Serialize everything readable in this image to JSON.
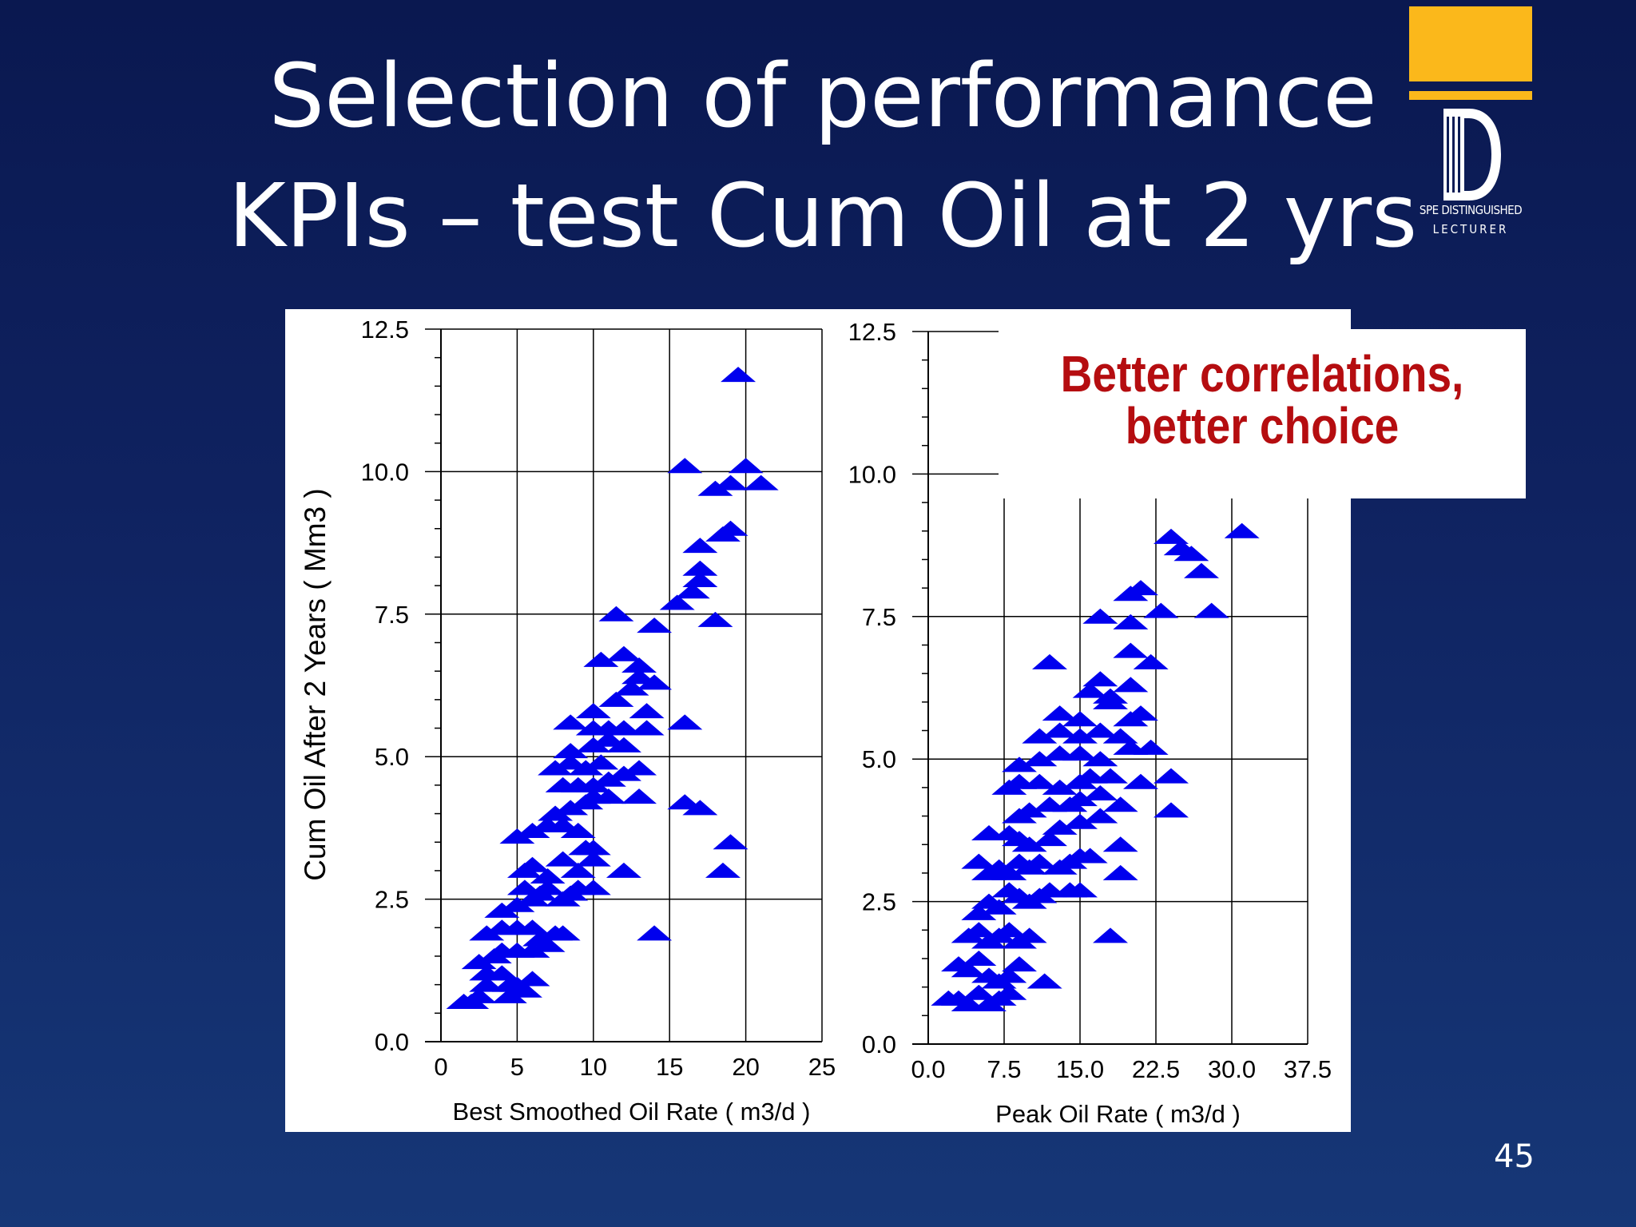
{
  "slide": {
    "title_line1": "Selection of performance",
    "title_line2": "KPIs – test Cum Oil at 2 yrs",
    "callout_line1": "Better correlations,",
    "callout_line2": "better choice",
    "slide_number": "45",
    "logo": {
      "line1": "SPE DISTINGUISHED",
      "line2": "LECTURER",
      "icon": "spe-distinguished-lecturer-logo"
    }
  },
  "colors": {
    "marker": "#0000ee",
    "callout_text": "#b50d10",
    "logo_gold": "#fbb81b"
  },
  "chart_data": [
    {
      "type": "scatter",
      "xlabel": "Best Smoothed Oil Rate ( m3/d )",
      "ylabel": "Cum Oil After 2 Years ( Mm3 )",
      "xlim": [
        0,
        25
      ],
      "ylim": [
        0,
        12.5
      ],
      "xticks": [
        "0",
        "5",
        "10",
        "15",
        "20",
        "25"
      ],
      "yticks": [
        "0.0",
        "2.5",
        "5.0",
        "7.5",
        "10.0",
        "12.5"
      ],
      "grid": true,
      "marker": "triangle",
      "points": [
        [
          1.5,
          0.7
        ],
        [
          2,
          0.7
        ],
        [
          2.5,
          0.8
        ],
        [
          3,
          1
        ],
        [
          3,
          1.2
        ],
        [
          2.5,
          1.4
        ],
        [
          3.5,
          1.5
        ],
        [
          4,
          1.2
        ],
        [
          4.5,
          1
        ],
        [
          4.5,
          0.8
        ],
        [
          5,
          1
        ],
        [
          5.5,
          0.9
        ],
        [
          6,
          1.1
        ],
        [
          4,
          1.6
        ],
        [
          5,
          1.6
        ],
        [
          6,
          1.6
        ],
        [
          6.5,
          1.8
        ],
        [
          7,
          1.7
        ],
        [
          3,
          1.9
        ],
        [
          4,
          2
        ],
        [
          5,
          2
        ],
        [
          6,
          2
        ],
        [
          7.5,
          1.9
        ],
        [
          8,
          1.9
        ],
        [
          4,
          2.3
        ],
        [
          5,
          2.4
        ],
        [
          6,
          2.5
        ],
        [
          5.5,
          2.7
        ],
        [
          6.5,
          2.6
        ],
        [
          7,
          2.7
        ],
        [
          8,
          2.5
        ],
        [
          8.5,
          2.6
        ],
        [
          9,
          2.7
        ],
        [
          10,
          2.7
        ],
        [
          5.5,
          3
        ],
        [
          6,
          3.1
        ],
        [
          7,
          2.9
        ],
        [
          8,
          3.2
        ],
        [
          9,
          3
        ],
        [
          10,
          3.2
        ],
        [
          12,
          3
        ],
        [
          5,
          3.6
        ],
        [
          6,
          3.7
        ],
        [
          7,
          3.8
        ],
        [
          8,
          3.8
        ],
        [
          9,
          3.7
        ],
        [
          9.5,
          3.4
        ],
        [
          10,
          3.4
        ],
        [
          7.5,
          4
        ],
        [
          8.5,
          4.1
        ],
        [
          9.5,
          4.2
        ],
        [
          10,
          4.3
        ],
        [
          11,
          4.3
        ],
        [
          13,
          4.3
        ],
        [
          8,
          4.5
        ],
        [
          9,
          4.5
        ],
        [
          10,
          4.5
        ],
        [
          11,
          4.6
        ],
        [
          7.5,
          4.8
        ],
        [
          8.5,
          4.9
        ],
        [
          9.5,
          4.8
        ],
        [
          10.5,
          4.9
        ],
        [
          12,
          4.7
        ],
        [
          13,
          4.8
        ],
        [
          8.5,
          5.1
        ],
        [
          10,
          5.2
        ],
        [
          11,
          5.3
        ],
        [
          12,
          5.2
        ],
        [
          8.5,
          5.6
        ],
        [
          10,
          5.5
        ],
        [
          11,
          5.5
        ],
        [
          12,
          5.5
        ],
        [
          13.5,
          5.5
        ],
        [
          10,
          5.8
        ],
        [
          11.5,
          6
        ],
        [
          13.5,
          5.8
        ],
        [
          12.5,
          6.2
        ],
        [
          13,
          6.4
        ],
        [
          14,
          6.3
        ],
        [
          10.5,
          6.7
        ],
        [
          12,
          6.8
        ],
        [
          13,
          6.6
        ],
        [
          11.5,
          7.5
        ],
        [
          14,
          7.3
        ],
        [
          16,
          5.6
        ],
        [
          16,
          4.2
        ],
        [
          17,
          4.1
        ],
        [
          18.5,
          3
        ],
        [
          19,
          3.5
        ],
        [
          14,
          1.9
        ],
        [
          15.5,
          7.7
        ],
        [
          16.5,
          7.9
        ],
        [
          17,
          8.1
        ],
        [
          17,
          8.3
        ],
        [
          17,
          8.7
        ],
        [
          18,
          7.4
        ],
        [
          18.5,
          8.9
        ],
        [
          19,
          9
        ],
        [
          18,
          9.7
        ],
        [
          19,
          9.8
        ],
        [
          20,
          10.1
        ],
        [
          21,
          9.8
        ],
        [
          16,
          10.1
        ],
        [
          19.5,
          11.7
        ]
      ]
    },
    {
      "type": "scatter",
      "xlabel": "Peak Oil Rate ( m3/d )",
      "ylabel": "",
      "xlim": [
        0,
        37.5
      ],
      "ylim": [
        0,
        12.5
      ],
      "xticks": [
        "0.0",
        "7.5",
        "15.0",
        "22.5",
        "30.0",
        "37.5"
      ],
      "yticks": [
        "0.0",
        "2.5",
        "5.0",
        "7.5",
        "10.0",
        "12.5"
      ],
      "grid": true,
      "marker": "triangle",
      "points": [
        [
          2,
          0.8
        ],
        [
          3,
          0.8
        ],
        [
          4,
          0.7
        ],
        [
          5,
          0.9
        ],
        [
          6,
          0.7
        ],
        [
          7,
          0.8
        ],
        [
          8,
          0.9
        ],
        [
          3,
          1.4
        ],
        [
          4,
          1.3
        ],
        [
          5,
          1.5
        ],
        [
          6,
          1.2
        ],
        [
          7,
          1.1
        ],
        [
          8,
          1.2
        ],
        [
          9,
          1.4
        ],
        [
          11.5,
          1.1
        ],
        [
          4,
          1.9
        ],
        [
          5,
          2
        ],
        [
          6,
          1.8
        ],
        [
          7,
          1.9
        ],
        [
          8,
          2
        ],
        [
          9,
          1.8
        ],
        [
          10,
          1.9
        ],
        [
          5,
          2.3
        ],
        [
          6,
          2.5
        ],
        [
          7,
          2.4
        ],
        [
          8,
          2.7
        ],
        [
          9,
          2.6
        ],
        [
          10,
          2.5
        ],
        [
          11,
          2.6
        ],
        [
          12,
          2.7
        ],
        [
          14,
          2.7
        ],
        [
          15,
          2.7
        ],
        [
          5,
          3.2
        ],
        [
          6,
          3
        ],
        [
          7,
          3.1
        ],
        [
          8,
          3
        ],
        [
          9,
          3.2
        ],
        [
          10,
          3.1
        ],
        [
          11,
          3.2
        ],
        [
          13,
          3.1
        ],
        [
          14,
          3.2
        ],
        [
          15,
          3.3
        ],
        [
          16,
          3.3
        ],
        [
          19,
          3
        ],
        [
          6,
          3.7
        ],
        [
          8,
          3.7
        ],
        [
          9,
          3.6
        ],
        [
          10,
          3.5
        ],
        [
          12,
          3.6
        ],
        [
          13,
          3.8
        ],
        [
          15,
          3.9
        ],
        [
          17,
          4
        ],
        [
          19,
          3.5
        ],
        [
          9,
          4
        ],
        [
          10,
          4.1
        ],
        [
          12,
          4.2
        ],
        [
          14,
          4.2
        ],
        [
          15,
          4.3
        ],
        [
          17,
          4.4
        ],
        [
          19,
          4.2
        ],
        [
          24,
          4.1
        ],
        [
          8,
          4.5
        ],
        [
          9,
          4.6
        ],
        [
          11,
          4.6
        ],
        [
          13,
          4.5
        ],
        [
          15,
          4.6
        ],
        [
          16,
          4.7
        ],
        [
          18,
          4.7
        ],
        [
          21,
          4.6
        ],
        [
          24,
          4.7
        ],
        [
          9,
          4.9
        ],
        [
          11,
          5
        ],
        [
          13,
          5.1
        ],
        [
          15,
          5.1
        ],
        [
          17,
          5
        ],
        [
          20,
          5.2
        ],
        [
          22,
          5.2
        ],
        [
          11,
          5.4
        ],
        [
          13,
          5.5
        ],
        [
          15,
          5.4
        ],
        [
          17,
          5.5
        ],
        [
          19,
          5.4
        ],
        [
          13,
          5.8
        ],
        [
          15,
          5.7
        ],
        [
          18,
          6
        ],
        [
          20,
          5.7
        ],
        [
          21,
          5.8
        ],
        [
          16,
          6.2
        ],
        [
          18,
          6.1
        ],
        [
          20,
          6.3
        ],
        [
          17,
          6.4
        ],
        [
          12,
          6.7
        ],
        [
          20,
          6.9
        ],
        [
          22,
          6.7
        ],
        [
          17,
          7.5
        ],
        [
          20,
          7.4
        ],
        [
          20,
          7.9
        ],
        [
          21,
          8
        ],
        [
          23,
          7.6
        ],
        [
          18,
          1.9
        ],
        [
          24,
          8.9
        ],
        [
          25,
          8.7
        ],
        [
          26,
          8.6
        ],
        [
          27,
          8.3
        ],
        [
          28,
          7.6
        ],
        [
          31,
          9
        ]
      ]
    }
  ]
}
